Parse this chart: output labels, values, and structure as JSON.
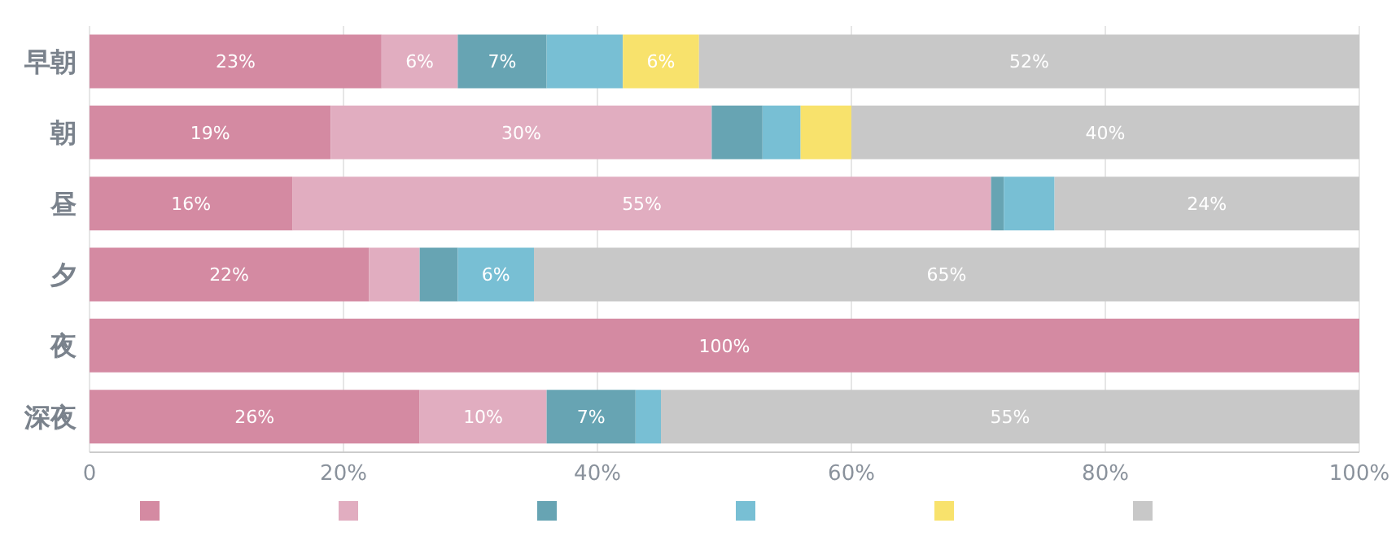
{
  "chart_data": {
    "type": "bar",
    "orientation": "horizontal",
    "stacked": true,
    "categories": [
      "早朝",
      "朝",
      "昼",
      "夕",
      "夜",
      "深夜"
    ],
    "series": [
      {
        "color": "#d48aa2",
        "values": [
          23,
          19,
          16,
          22,
          100,
          26
        ],
        "value_labels": [
          "23%",
          "19%",
          "16%",
          "22%",
          "100%",
          "26%"
        ]
      },
      {
        "color": "#e1adc0",
        "values": [
          6,
          30,
          55,
          4,
          0,
          10
        ],
        "value_labels": [
          "6%",
          "30%",
          "55%",
          null,
          null,
          "10%"
        ]
      },
      {
        "color": "#67a4b3",
        "values": [
          7,
          4,
          1,
          3,
          0,
          7
        ],
        "value_labels": [
          "7%",
          null,
          null,
          null,
          null,
          "7%"
        ]
      },
      {
        "color": "#78bfd4",
        "values": [
          6,
          3,
          4,
          6,
          0,
          2
        ],
        "value_labels": [
          null,
          null,
          null,
          "6%",
          null,
          null
        ]
      },
      {
        "color": "#f8e26c",
        "values": [
          6,
          4,
          0,
          0,
          0,
          0
        ],
        "value_labels": [
          "6%",
          null,
          null,
          null,
          null,
          null
        ]
      },
      {
        "color": "#c8c8c8",
        "values": [
          52,
          40,
          24,
          65,
          0,
          55
        ],
        "value_labels": [
          "52%",
          "40%",
          "24%",
          "65%",
          null,
          "55%"
        ]
      }
    ],
    "xlim": [
      0,
      100
    ],
    "xticks": [
      0,
      {
        "value": 20,
        "label": "20%"
      },
      {
        "value": 40,
        "label": "40%"
      },
      {
        "value": 60,
        "label": "60%"
      },
      {
        "value": 80,
        "label": "80%"
      },
      {
        "value": 100,
        "label": "100%"
      }
    ],
    "grid": "x"
  }
}
